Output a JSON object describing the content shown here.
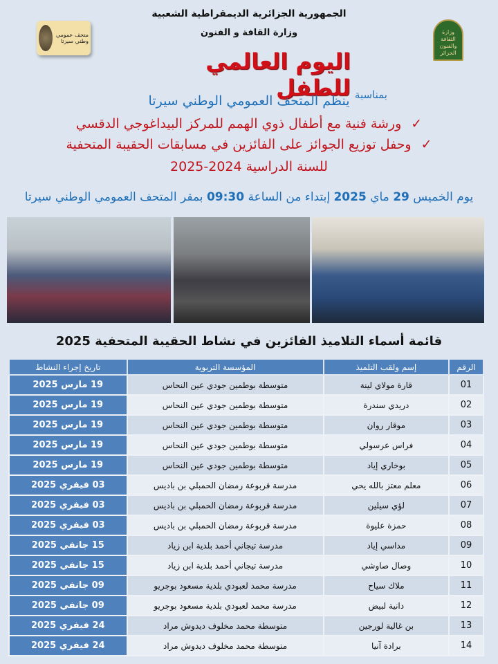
{
  "header": {
    "republic": "الجمهورية الجزائرية الديمقراطية الشعبية",
    "ministry": "وزارة القافة و الفنون",
    "occasion": "بمناسبة",
    "title": "اليوم العالمي للطفل"
  },
  "logos": {
    "left_text": "متحف عمومي وطني سيرتا",
    "right_text": "وزارة الثقافة والفنون الجزائر"
  },
  "announcement": {
    "organizer": "ينظم المتحف العمومي الوطني سيرتا",
    "items": [
      "ورشة فنية مع أطفال ذوي الهمم للمركز البيداغوجي الدقسي",
      "وحفل توزيع  الجوائز على الفائزين في مسابقات الحقيبة المتحفية"
    ],
    "school_year": "للسنة الدراسية 2024-2025",
    "check_icon": "checkmark",
    "when_pre": "يوم الخميس ",
    "day": "29",
    "month": " ماي ",
    "year": "2025",
    "from": " إبتداء من الساعة ",
    "time": "09:30",
    "place": " بمقر المتحف العمومي الوطني سيرتا"
  },
  "table": {
    "title": "قائمة أسماء التلاميذ الفائزين في نشاط الحقيبة المتحفية 2025",
    "headers": [
      "الرقم",
      "إسم ولقب التلميذ",
      "المؤسسة التربوية",
      "تاريخ إجراء النشاط"
    ],
    "rows": [
      [
        "01",
        "قارة مولاي لينة",
        "متوسطة بوطمين جودي عين النحاس",
        "19 مارس 2025"
      ],
      [
        "02",
        "دريدي سندرة",
        "متوسطة بوطمين جودي عين النحاس",
        "19 مارس 2025"
      ],
      [
        "03",
        "موقار روان",
        "متوسطة بوطمين جودي عين النحاس",
        "19 مارس 2025"
      ],
      [
        "04",
        "فراس عرسولي",
        "متوسطة بوطمين جودي عين النحاس",
        "19 مارس 2025"
      ],
      [
        "05",
        "بوخاري إياد",
        "متوسطة بوطمين جودي عين النحاس",
        "19 مارس 2025"
      ],
      [
        "06",
        "معلم معتز بالله يحي",
        "مدرسة قربوعة رمضان الحمبلي بن باديس",
        "03 فيفري 2025"
      ],
      [
        "07",
        "لؤي سيلين",
        "مدرسة قربوعة رمضان الحمبلي بن باديس",
        "03 فيفري 2025"
      ],
      [
        "08",
        "حمزة عليوة",
        "مدرسة قربوعة رمضان الحمبلي بن باديس",
        "03 فيفري 2025"
      ],
      [
        "09",
        "مداسي إياد",
        "مدرسة تيجاني أحمد بلدية ابن زياد",
        "15 جانفي 2025"
      ],
      [
        "10",
        "وصال صاوشي",
        "مدرسة تيجاني أحمد بلدية ابن زياد",
        "15 جانفي 2025"
      ],
      [
        "11",
        "ملاك سياح",
        "مدرسة محمد لعبودي بلدية مسعود بوجريو",
        "09 جانفي 2025"
      ],
      [
        "12",
        "دانية لبيض",
        "مدرسة محمد لعبودي بلدية مسعود بوجريو",
        "09 جانفي 2025"
      ],
      [
        "13",
        "بن غالية لورجين",
        "متوسطة محمد مخلوف ديدوش مراد",
        "24 فيفري 2025"
      ],
      [
        "14",
        "برادة آنيا",
        "متوسطة محمد مخلوف ديدوش مراد",
        "24 فيفري 2025"
      ]
    ]
  },
  "colors": {
    "background": "#dde6f0",
    "title_red": "#d01018",
    "blue_text": "#1f6fb8",
    "table_blue": "#4f81bd"
  }
}
